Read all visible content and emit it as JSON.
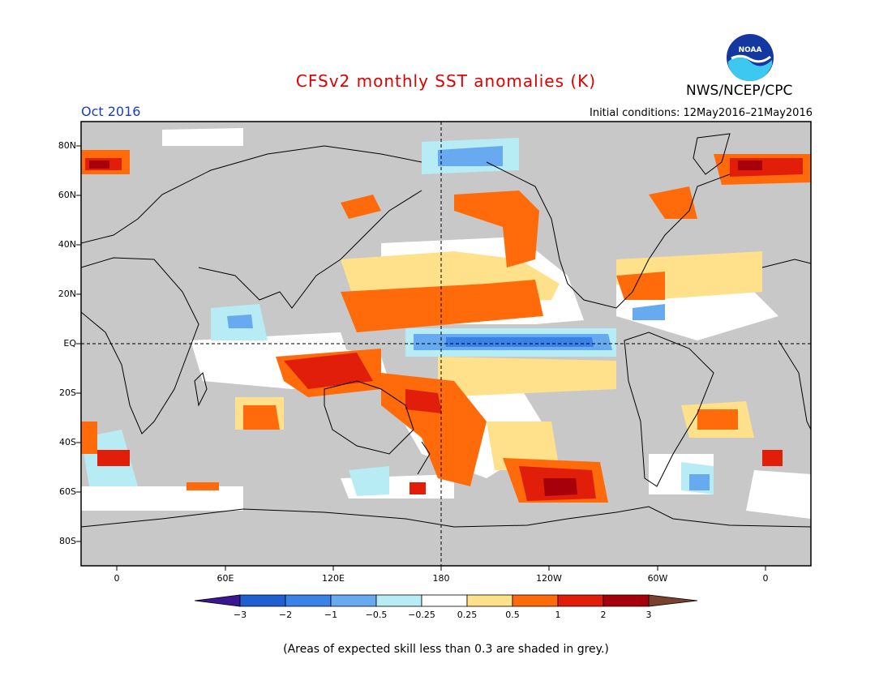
{
  "header": {
    "title": "CFSv2 monthly SST anomalies (K)",
    "agency": "NWS/NCEP/CPC",
    "period": "Oct 2016",
    "initial_conditions": "Initial conditions: 12May2016–21May2016",
    "logo_text": "NOAA"
  },
  "map": {
    "projection": "cylindrical equidistant",
    "lat_labels": [
      "80N",
      "60N",
      "40N",
      "20N",
      "EQ",
      "20S",
      "40S",
      "60S",
      "80S"
    ],
    "lon_labels": [
      "0",
      "60E",
      "120E",
      "180",
      "120W",
      "60W",
      "0"
    ],
    "reference_lines": [
      "equator (dashed)",
      "180 meridian (dashed)"
    ],
    "land_color": "#c8c8c8",
    "masked_color": "#c8c8c8"
  },
  "colorbar": {
    "labels": [
      "−3",
      "−2",
      "−1",
      "−0.5",
      "−0.25",
      "0.25",
      "0.5",
      "1",
      "2",
      "3"
    ],
    "colors": [
      "#3c1690",
      "#1f5fd2",
      "#3a82e8",
      "#67aaf0",
      "#b8ecf4",
      "#ffffff",
      "#ffe18c",
      "#ff6a0a",
      "#e01e0a",
      "#a8000a",
      "#7a4030"
    ]
  },
  "footnote": "(Areas of expected skill less than 0.3 are shaded in grey.)"
}
